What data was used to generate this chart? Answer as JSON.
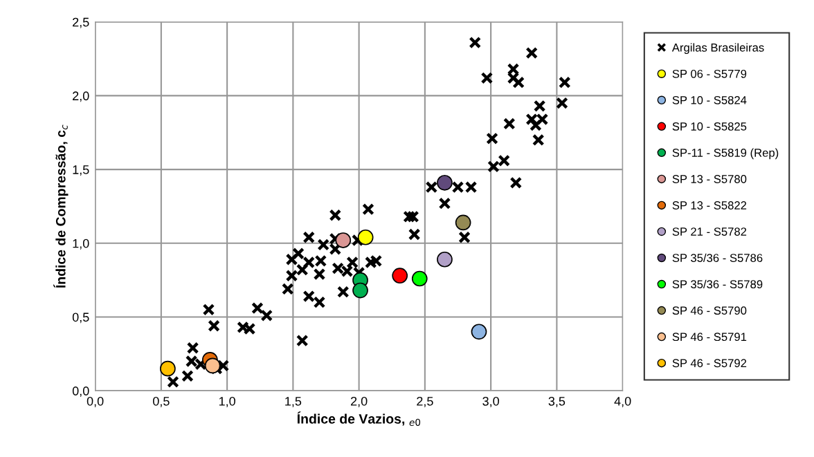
{
  "chart_data": {
    "type": "scatter",
    "xlabel": "Índice de Vazios, $_{e0}$",
    "ylabel": "Índice de Compressão, c$_{c}$",
    "xlim": [
      0,
      4
    ],
    "ylim": [
      0,
      2.5
    ],
    "xticks": [
      {
        "value": 0,
        "label": "0,0"
      },
      {
        "value": 0.5,
        "label": "0,5"
      },
      {
        "value": 1,
        "label": "1,0"
      },
      {
        "value": 1.5,
        "label": "1,5"
      },
      {
        "value": 2,
        "label": "2,0"
      },
      {
        "value": 2.5,
        "label": "2,5"
      },
      {
        "value": 3,
        "label": "3,0"
      },
      {
        "value": 3.5,
        "label": "3,5"
      },
      {
        "value": 4,
        "label": "4,0"
      }
    ],
    "yticks": [
      {
        "value": 0,
        "label": "0,0"
      },
      {
        "value": 0.5,
        "label": "0,5"
      },
      {
        "value": 1,
        "label": "1,0"
      },
      {
        "value": 1.5,
        "label": "1,5"
      },
      {
        "value": 2,
        "label": "2,0"
      },
      {
        "value": 2.5,
        "label": "2,5"
      }
    ],
    "grid": true,
    "legend": "right",
    "series": [
      {
        "name": "Argilas Brasileiras",
        "color": "#000000",
        "marker": "cross",
        "x": [
          0.59,
          0.7,
          0.74,
          0.73,
          0.8,
          0.86,
          0.9,
          0.92,
          0.97,
          1.12,
          1.17,
          1.23,
          1.3,
          1.46,
          1.49,
          1.49,
          1.54,
          1.57,
          1.62,
          1.62,
          1.57,
          1.62,
          1.7,
          1.7,
          1.71,
          1.73,
          1.82,
          1.82,
          1.82,
          1.84,
          1.91,
          1.88,
          1.95,
          1.99,
          2.0,
          2.09,
          2.13,
          2.07,
          2.38,
          2.41,
          2.42,
          2.55,
          2.65,
          2.75,
          2.85,
          2.8,
          3.02,
          3.1,
          3.19,
          3.01,
          3.14,
          3.31,
          3.39,
          3.34,
          3.36,
          3.37,
          2.88,
          3.31,
          2.97,
          3.17,
          3.17,
          3.21,
          3.56,
          3.54
        ],
        "values": [
          0.06,
          0.1,
          0.29,
          0.2,
          0.18,
          0.55,
          0.44,
          0.15,
          0.17,
          0.43,
          0.42,
          0.56,
          0.51,
          0.69,
          0.78,
          0.89,
          0.93,
          0.82,
          0.87,
          1.04,
          0.34,
          0.64,
          0.6,
          0.79,
          0.88,
          0.99,
          1.19,
          1.03,
          0.96,
          0.83,
          0.81,
          0.67,
          0.87,
          1.02,
          0.8,
          0.87,
          0.88,
          1.23,
          1.18,
          1.18,
          1.06,
          1.38,
          1.27,
          1.38,
          1.38,
          1.04,
          1.52,
          1.56,
          1.41,
          1.71,
          1.81,
          1.84,
          1.84,
          1.8,
          1.7,
          1.93,
          2.36,
          2.29,
          2.12,
          2.18,
          2.12,
          2.09,
          2.09,
          1.95
        ]
      },
      {
        "name": "SP 06 - S5779",
        "color": "#ffff00",
        "marker": "circle",
        "x": [
          2.05
        ],
        "values": [
          1.04
        ]
      },
      {
        "name": "SP 10 - S5824",
        "color": "#8db4e2",
        "marker": "circle",
        "x": [
          2.91
        ],
        "values": [
          0.4
        ]
      },
      {
        "name": "SP 10 - S5825",
        "color": "#ff0000",
        "marker": "circle",
        "x": [
          2.31
        ],
        "values": [
          0.78
        ]
      },
      {
        "name": "SP-11 - S5819 (Rep)",
        "color": "#00b050",
        "marker": "circle",
        "x": [
          2.01,
          2.01
        ],
        "values": [
          0.75,
          0.68
        ]
      },
      {
        "name": "SP 13 - S5780",
        "color": "#da9694",
        "marker": "circle",
        "x": [
          1.88
        ],
        "values": [
          1.02
        ]
      },
      {
        "name": "SP 13 - S5822",
        "color": "#e26b0a",
        "marker": "circle",
        "x": [
          0.87
        ],
        "values": [
          0.21
        ]
      },
      {
        "name": "SP 21 - S5782",
        "color": "#b1a0c7",
        "marker": "circle",
        "x": [
          2.65
        ],
        "values": [
          0.89
        ]
      },
      {
        "name": "SP 35/36 - S5786",
        "color": "#604a7b",
        "marker": "circle",
        "x": [
          2.65
        ],
        "values": [
          1.41
        ]
      },
      {
        "name": "SP 35/36 - S5789",
        "color": "#00ff00",
        "marker": "circle",
        "x": [
          2.46
        ],
        "values": [
          0.76
        ]
      },
      {
        "name": "SP 46 - S5790",
        "color": "#948a54",
        "marker": "circle",
        "x": [
          2.79
        ],
        "values": [
          1.14
        ]
      },
      {
        "name": "SP 46 - S5791",
        "color": "#fabf8f",
        "marker": "circle",
        "x": [
          0.89
        ],
        "values": [
          0.17
        ]
      },
      {
        "name": "SP 46 - S5792",
        "color": "#ffc000",
        "marker": "circle",
        "x": [
          0.55
        ],
        "values": [
          0.15
        ]
      }
    ]
  }
}
